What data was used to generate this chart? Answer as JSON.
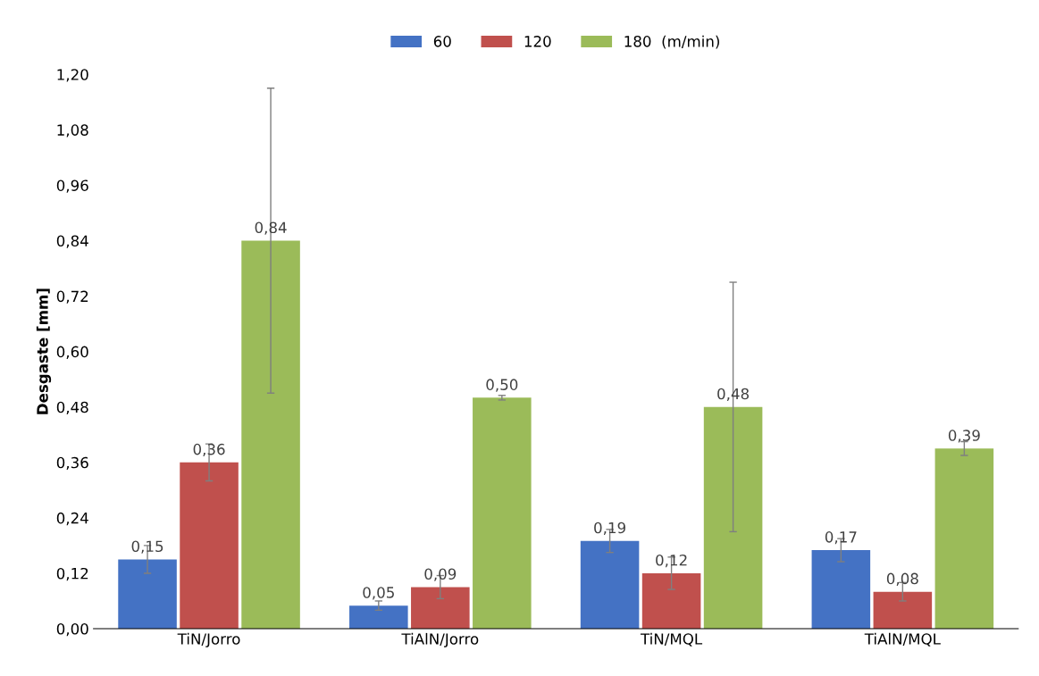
{
  "chart_data": {
    "type": "bar",
    "ylabel": "Desgaste [mm]",
    "categories": [
      "TiN/Jorro",
      "TiAlN/Jorro",
      "TiN/MQL",
      "TiAlN/MQL"
    ],
    "series": [
      {
        "name": "60",
        "color": "#4472c4",
        "values": [
          0.15,
          0.05,
          0.19,
          0.17
        ],
        "errors": [
          0.03,
          0.01,
          0.025,
          0.025
        ],
        "value_labels": [
          "0,15",
          "0,05",
          "0,19",
          "0,17"
        ]
      },
      {
        "name": "120",
        "color": "#c0504d",
        "values": [
          0.36,
          0.09,
          0.12,
          0.08
        ],
        "errors": [
          0.04,
          0.025,
          0.035,
          0.02
        ],
        "value_labels": [
          "0,36",
          "0,09",
          "0,12",
          "0,08"
        ]
      },
      {
        "name": "180  (m/min)",
        "color": "#9bbb59",
        "values": [
          0.84,
          0.5,
          0.48,
          0.39
        ],
        "errors": [
          0.33,
          0.005,
          0.27,
          0.015
        ],
        "value_labels": [
          "0,84",
          "0,50",
          "0,48",
          "0,39"
        ]
      }
    ],
    "ylim": [
      0,
      1.2
    ],
    "yticks": [
      {
        "value": 0,
        "label": "0,00"
      },
      {
        "value": 0.12,
        "label": "0,12"
      },
      {
        "value": 0.24,
        "label": "0,24"
      },
      {
        "value": 0.36,
        "label": "0,36"
      },
      {
        "value": 0.48,
        "label": "0,48"
      },
      {
        "value": 0.6,
        "label": "0,60"
      },
      {
        "value": 0.72,
        "label": "0,72"
      },
      {
        "value": 0.84,
        "label": "0,84"
      },
      {
        "value": 0.96,
        "label": "0,96"
      },
      {
        "value": 1.08,
        "label": "1,08"
      },
      {
        "value": 1.2,
        "label": "1,20"
      }
    ],
    "grid": false,
    "legend": "top"
  }
}
